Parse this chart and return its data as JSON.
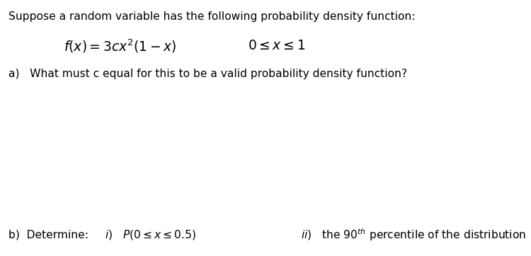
{
  "background_color": "#ffffff",
  "title_text": "Suppose a random variable has the following probability density function:",
  "title_fontsize": 11.2,
  "formula_fontsize": 13.5,
  "domain_fontsize": 13.5,
  "part_a_fontsize": 11.2,
  "part_b_fontsize": 11.2,
  "text_color": "#000000"
}
